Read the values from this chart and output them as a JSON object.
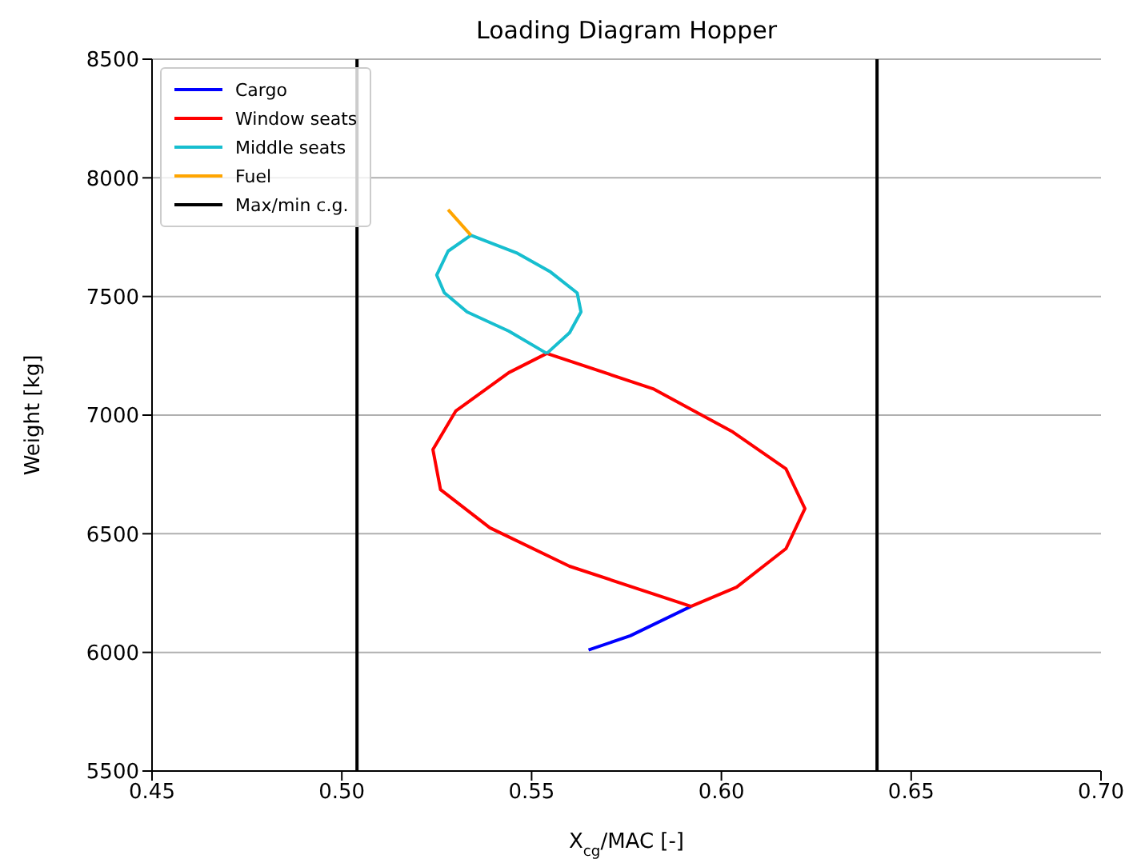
{
  "chart_data": {
    "type": "line",
    "title": "Loading Diagram Hopper",
    "xlabel": "X$_{cg}$/MAC [-]",
    "ylabel": "Weight [kg]",
    "xlim": [
      0.45,
      0.7
    ],
    "xticks": [
      0.45,
      {
        "value": 0.5,
        "label": "0.50"
      },
      0.55,
      {
        "value": 0.6,
        "label": "0.60"
      },
      0.65,
      {
        "value": 0.7,
        "label": "0.70"
      }
    ],
    "ylim": [
      5500,
      8500
    ],
    "yticks": [
      5500,
      6000,
      6500,
      7000,
      7500,
      8000,
      8500
    ],
    "grid": "y",
    "legend": "top left",
    "marker": "none",
    "line_style": "solid",
    "series": [
      {
        "name": "Cargo",
        "color": "#0000ff",
        "x": [
          0.565,
          0.576,
          0.592
        ],
        "values": [
          6010,
          6070,
          6194
        ]
      },
      {
        "name": "Window seats",
        "color": "#ff0000",
        "x": [
          0.592,
          0.604,
          0.617,
          0.622,
          0.617,
          0.603,
          0.582,
          0.554
        ],
        "values": [
          6194,
          6275,
          6437,
          6606,
          6774,
          6929,
          7111,
          7260
        ]
      },
      {
        "color": "#ff0000",
        "x": [
          0.592,
          0.56,
          0.539,
          0.526,
          0.524,
          0.53,
          0.544,
          0.554
        ],
        "values": [
          6194,
          6363,
          6525,
          6686,
          6855,
          7017,
          7179,
          7260
        ]
      },
      {
        "name": "Middle seats",
        "color": "#17becf",
        "x": [
          0.554,
          0.56,
          0.563,
          0.562,
          0.555,
          0.546,
          0.534
        ],
        "values": [
          7260,
          7347,
          7435,
          7515,
          7603,
          7684,
          7758
        ]
      },
      {
        "color": "#17becf",
        "x": [
          0.554,
          0.544,
          0.533,
          0.527,
          0.525,
          0.528,
          0.534
        ],
        "values": [
          7260,
          7354,
          7435,
          7516,
          7590,
          7691,
          7758
        ]
      },
      {
        "name": "Fuel",
        "color": "#ffa500",
        "x": [
          0.534,
          0.528
        ],
        "values": [
          7758,
          7866
        ]
      },
      {
        "name": "Max/min c.g.",
        "color": "#000000",
        "x": [
          0.504,
          0.504,
          0.5725,
          0.641,
          0.641
        ],
        "values": [
          5500,
          8500,
          null,
          5500,
          8500
        ]
      }
    ]
  }
}
